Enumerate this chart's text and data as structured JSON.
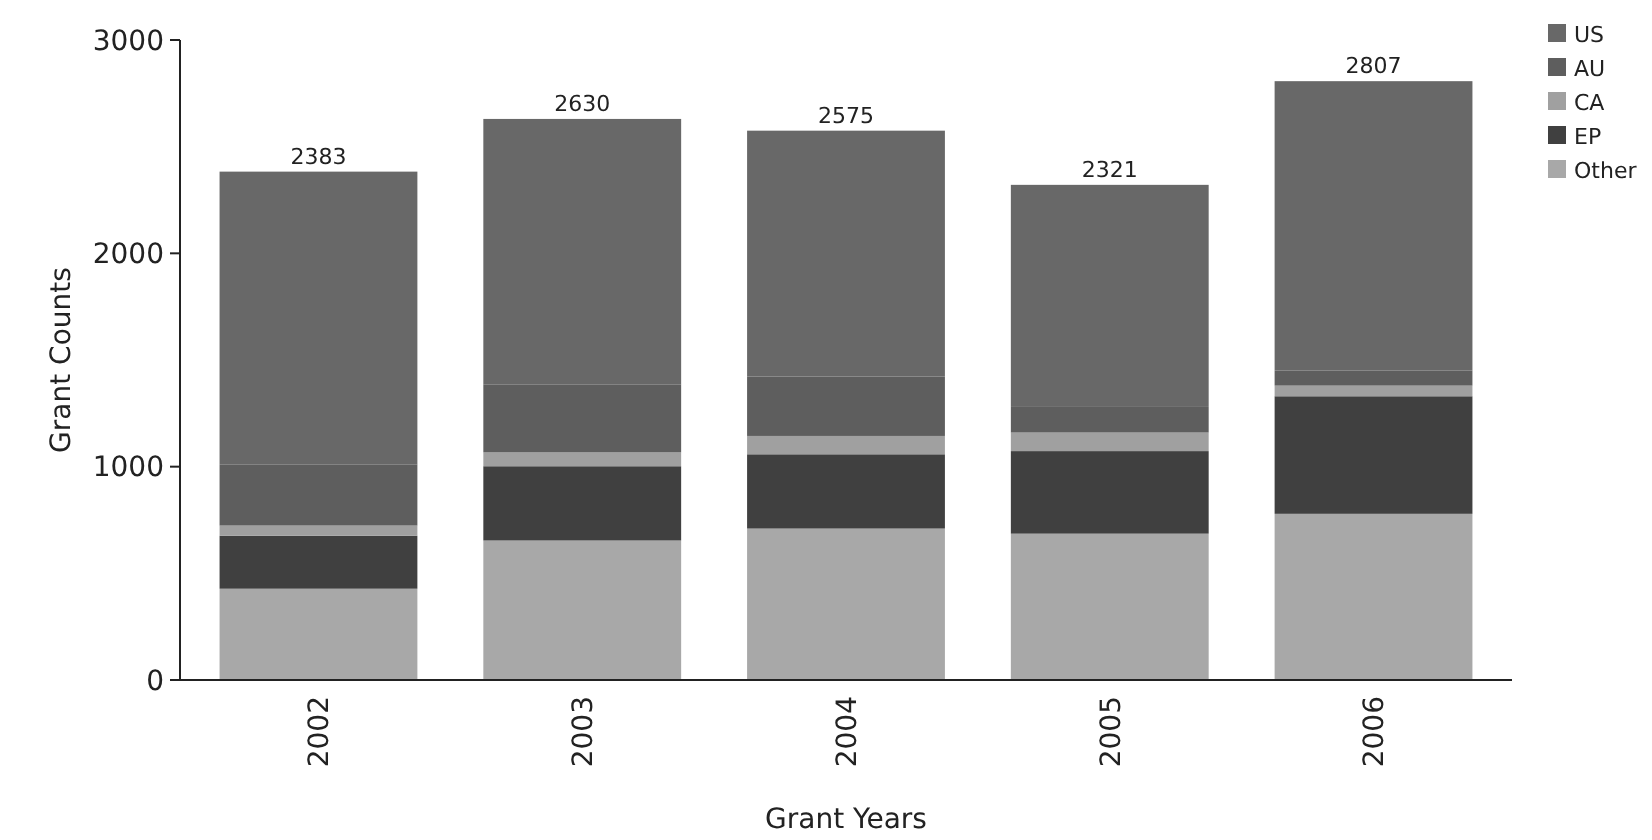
{
  "chart_data": {
    "type": "bar",
    "stacked": true,
    "xlabel": "Grant Years",
    "ylabel": "Grant Counts",
    "categories": [
      "2002",
      "2003",
      "2004",
      "2005",
      "2006"
    ],
    "series": [
      {
        "name": "Other",
        "color": "#a8a8a8",
        "values": [
          428,
          654,
          710,
          686,
          779
        ]
      },
      {
        "name": "EP",
        "color": "#404040",
        "values": [
          248,
          348,
          348,
          387,
          551
        ]
      },
      {
        "name": "CA",
        "color": "#a0a0a0",
        "values": [
          48,
          65,
          86,
          87,
          50
        ]
      },
      {
        "name": "AU",
        "color": "#5e5e5e",
        "values": [
          287,
          319,
          279,
          120,
          70
        ]
      },
      {
        "name": "US",
        "color": "#686868",
        "values": [
          1372,
          1244,
          1152,
          1041,
          1357
        ]
      }
    ],
    "totals": [
      "2383",
      "2630",
      "2575",
      "2321",
      "2807"
    ],
    "ylim": [
      0,
      3000
    ],
    "yticks": [
      0,
      1000,
      2000,
      3000
    ],
    "grid": false,
    "legend": "top right"
  }
}
